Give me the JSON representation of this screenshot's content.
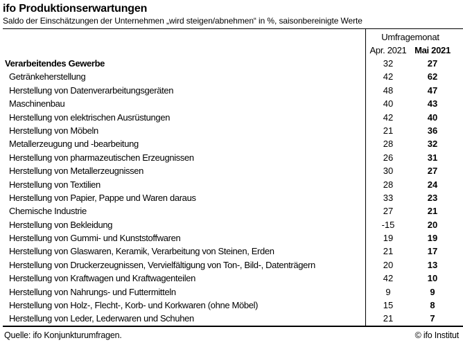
{
  "title": "ifo Produktionserwartungen",
  "subtitle": "Saldo der Einschätzungen der Unternehmen „wird steigen/abnehmen“ in %, saisonbereinigte Werte",
  "table": {
    "group_header": "Umfragemonat",
    "bold_row_index": 0
  },
  "footer": {
    "source": "Quelle: ifo Konjunkturumfragen.",
    "copyright": "© ifo Institut"
  },
  "colors": {
    "text": "#000000",
    "background": "#ffffff",
    "line": "#000000"
  },
  "chart_data": {
    "type": "table",
    "title": "ifo Produktionserwartungen",
    "subtitle": "Saldo der Einschätzungen der Unternehmen „wird steigen/abnehmen“ in %, saisonbereinigte Werte",
    "unit": "Saldo in %, saisonbereinigt",
    "column_group": "Umfragemonat",
    "categories": [
      "Verarbeitendes Gewerbe",
      "Getränkeherstellung",
      "Herstellung von Datenverarbeitungsgeräten",
      "Maschinenbau",
      "Herstellung von elektrischen Ausrüstungen",
      "Herstellung von Möbeln",
      "Metallerzeugung und -bearbeitung",
      "Herstellung von pharmazeutischen Erzeugnissen",
      "Herstellung von Metallerzeugnissen",
      "Herstellung von Textilien",
      "Herstellung von Papier, Pappe und Waren daraus",
      "Chemische Industrie",
      "Herstellung von Bekleidung",
      "Herstellung von Gummi- und Kunststoffwaren",
      "Herstellung von Glaswaren, Keramik, Verarbeitung von Steinen, Erden",
      "Herstellung von Druckerzeugnissen, Vervielfältigung von Ton-, Bild-, Datenträgern",
      "Herstellung von Kraftwagen und Kraftwagenteilen",
      "Herstellung von Nahrungs- und Futtermitteln",
      "Herstellung von Holz-, Flecht-, Korb- und Korkwaren (ohne Möbel)",
      "Herstellung von Leder, Lederwaren und Schuhen"
    ],
    "series": [
      {
        "name": "Apr. 2021",
        "values": [
          32,
          42,
          48,
          40,
          42,
          21,
          28,
          26,
          30,
          28,
          33,
          27,
          -15,
          19,
          21,
          20,
          42,
          9,
          15,
          21
        ]
      },
      {
        "name": "Mai 2021",
        "values": [
          27,
          62,
          47,
          43,
          40,
          36,
          32,
          31,
          27,
          24,
          23,
          21,
          20,
          19,
          17,
          13,
          10,
          9,
          8,
          7
        ]
      }
    ]
  }
}
